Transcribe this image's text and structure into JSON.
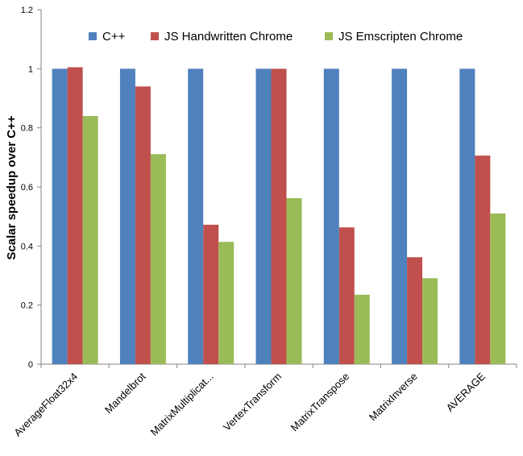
{
  "chart_data": {
    "type": "bar",
    "title": "",
    "xlabel": "",
    "ylabel": "Scalar speedup over C++",
    "ylim": [
      0,
      1.2
    ],
    "yticks": [
      "0",
      "0.2",
      "0.4",
      "0.6",
      "0.8",
      "1",
      "1.2"
    ],
    "grid": false,
    "legend_position": "top",
    "categories": [
      "AverageFloat32x4",
      "Mandelbrot",
      "MatrixMultiplicat...",
      "VertexTransform",
      "MatrixTranspose",
      "MatrixInverse",
      "AVERAGE"
    ],
    "series": [
      {
        "name": "C++",
        "color": "#4F81BD",
        "values": [
          1,
          1,
          1,
          1,
          1,
          1,
          1
        ]
      },
      {
        "name": "JS Handwritten Chrome",
        "color": "#C0504D",
        "values": [
          1.005,
          0.94,
          0.472,
          1.0,
          0.463,
          0.362,
          0.706
        ]
      },
      {
        "name": "JS Emscripten Chrome",
        "color": "#9BBB59",
        "values": [
          0.84,
          0.711,
          0.414,
          0.562,
          0.235,
          0.291,
          0.51
        ]
      }
    ]
  }
}
